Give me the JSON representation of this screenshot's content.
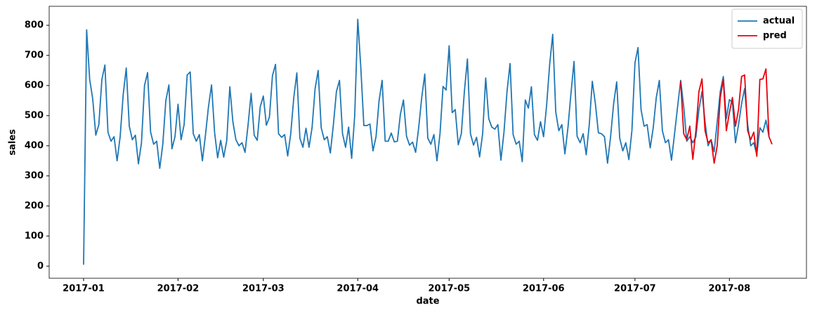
{
  "chart_data": {
    "type": "line",
    "x_label": "date",
    "y_label": "sales",
    "xlim": [
      -11.3,
      237.3
    ],
    "xticks": [
      {
        "value": 0,
        "label": "2017-01"
      },
      {
        "value": 31,
        "label": "2017-02"
      },
      {
        "value": 59,
        "label": "2017-03"
      },
      {
        "value": 90,
        "label": "2017-04"
      },
      {
        "value": 120,
        "label": "2017-05"
      },
      {
        "value": 151,
        "label": "2017-06"
      },
      {
        "value": 181,
        "label": "2017-07"
      },
      {
        "value": 212,
        "label": "2017-08"
      }
    ],
    "ylim": [
      -40,
      863
    ],
    "yticks": [
      0,
      100,
      200,
      300,
      400,
      500,
      600,
      700,
      800
    ],
    "legend": "upper right",
    "series": [
      {
        "name": "actual",
        "color": "#1f77b4",
        "x": [
          0,
          1,
          2,
          3,
          4,
          5,
          6,
          7,
          8,
          9,
          10,
          11,
          12,
          13,
          14,
          15,
          16,
          17,
          18,
          19,
          20,
          21,
          22,
          23,
          24,
          25,
          26,
          27,
          28,
          29,
          30,
          31,
          32,
          33,
          34,
          35,
          36,
          37,
          38,
          39,
          40,
          41,
          42,
          43,
          44,
          45,
          46,
          47,
          48,
          49,
          50,
          51,
          52,
          53,
          54,
          55,
          56,
          57,
          58,
          59,
          60,
          61,
          62,
          63,
          64,
          65,
          66,
          67,
          68,
          69,
          70,
          71,
          72,
          73,
          74,
          75,
          76,
          77,
          78,
          79,
          80,
          81,
          82,
          83,
          84,
          85,
          86,
          87,
          88,
          89,
          90,
          91,
          92,
          93,
          94,
          95,
          96,
          97,
          98,
          99,
          100,
          101,
          102,
          103,
          104,
          105,
          106,
          107,
          108,
          109,
          110,
          111,
          112,
          113,
          114,
          115,
          116,
          117,
          118,
          119,
          120,
          121,
          122,
          123,
          124,
          125,
          126,
          127,
          128,
          129,
          130,
          131,
          132,
          133,
          134,
          135,
          136,
          137,
          138,
          139,
          140,
          141,
          142,
          143,
          144,
          145,
          146,
          147,
          148,
          149,
          150,
          151,
          152,
          153,
          154,
          155,
          156,
          157,
          158,
          159,
          160,
          161,
          162,
          163,
          164,
          165,
          166,
          167,
          168,
          169,
          170,
          171,
          172,
          173,
          174,
          175,
          176,
          177,
          178,
          179,
          180,
          181,
          182,
          183,
          184,
          185,
          186,
          187,
          188,
          189,
          190,
          191,
          192,
          193,
          194,
          195,
          196,
          197,
          198,
          199,
          200,
          201,
          202,
          203,
          204,
          205,
          206,
          207,
          208,
          209,
          210,
          211,
          212,
          213,
          214,
          215,
          216,
          217,
          218,
          219,
          220,
          221,
          222,
          223,
          224,
          225
        ],
        "values": [
          5,
          785,
          620,
          555,
          435,
          470,
          620,
          668,
          445,
          415,
          430,
          350,
          430,
          570,
          658,
          465,
          420,
          435,
          340,
          410,
          600,
          643,
          445,
          405,
          415,
          325,
          405,
          550,
          602,
          390,
          430,
          538,
          420,
          470,
          635,
          645,
          440,
          415,
          437,
          350,
          435,
          530,
          602,
          445,
          360,
          418,
          362,
          418,
          596,
          480,
          420,
          400,
          410,
          378,
          470,
          574,
          435,
          418,
          530,
          565,
          468,
          495,
          633,
          670,
          440,
          428,
          437,
          366,
          440,
          560,
          642,
          425,
          395,
          458,
          395,
          460,
          590,
          650,
          460,
          420,
          430,
          376,
          470,
          580,
          617,
          440,
          395,
          462,
          358,
          500,
          820,
          660,
          467,
          467,
          472,
          383,
          430,
          550,
          617,
          415,
          415,
          442,
          413,
          415,
          505,
          552,
          432,
          402,
          412,
          378,
          460,
          560,
          638,
          425,
          405,
          437,
          350,
          440,
          597,
          585,
          732,
          510,
          520,
          403,
          440,
          580,
          688,
          440,
          402,
          428,
          363,
          440,
          625,
          490,
          462,
          455,
          470,
          352,
          445,
          580,
          673,
          437,
          405,
          415,
          347,
          552,
          525,
          596,
          437,
          418,
          480,
          430,
          535,
          670,
          770,
          512,
          450,
          470,
          373,
          460,
          575,
          680,
          432,
          410,
          440,
          370,
          470,
          614,
          540,
          443,
          440,
          430,
          342,
          430,
          540,
          612,
          425,
          383,
          410,
          354,
          450,
          675,
          726,
          520,
          465,
          470,
          393,
          460,
          560,
          617,
          450,
          410,
          420,
          352,
          440,
          530,
          617,
          530,
          415,
          430,
          410,
          430,
          520,
          580,
          480,
          400,
          420,
          380,
          480,
          580,
          630,
          490,
          553,
          545,
          410,
          470,
          540,
          590,
          470,
          400,
          410,
          370,
          460,
          445,
          485,
          430
        ]
      },
      {
        "name": "pred",
        "color": "#e8000b",
        "x": [
          196,
          197,
          198,
          199,
          200,
          201,
          202,
          203,
          204,
          205,
          206,
          207,
          208,
          209,
          210,
          211,
          212,
          213,
          214,
          215,
          216,
          217,
          218,
          219,
          220,
          221,
          222,
          223,
          224,
          225,
          226
        ],
        "values": [
          615,
          440,
          420,
          465,
          355,
          450,
          580,
          622,
          450,
          410,
          420,
          342,
          400,
          560,
          620,
          450,
          510,
          560,
          465,
          520,
          630,
          635,
          450,
          420,
          445,
          365,
          620,
          622,
          655,
          430,
          405
        ]
      }
    ]
  }
}
